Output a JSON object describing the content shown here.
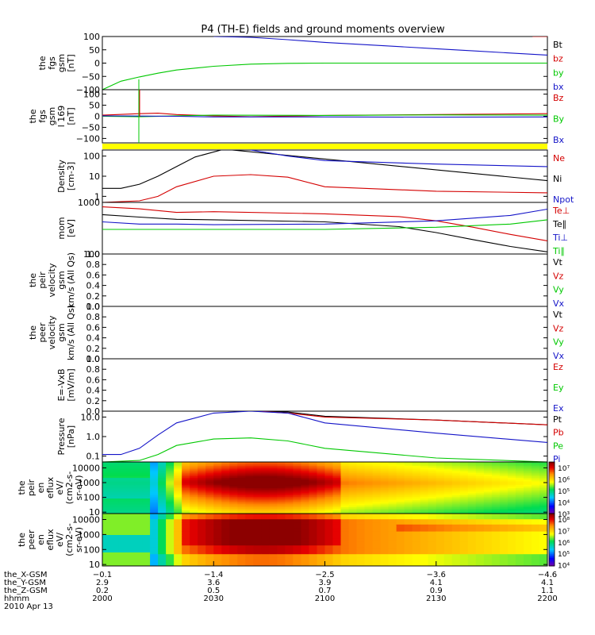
{
  "title": "P4 (TH-E) fields and ground moments overview",
  "colors": {
    "black": "#000000",
    "red": "#d40000",
    "green": "#00c800",
    "blue": "#1414c8",
    "yellow": "#ffff00"
  },
  "chart_data": [
    {
      "type": "line",
      "id": "fgs",
      "ylabel": [
        "the",
        "fgs",
        "gsm",
        "[nT]"
      ],
      "ylim": [
        -100,
        100
      ],
      "yticks": [
        "100",
        "50",
        "0",
        "−50",
        "−100"
      ],
      "ytick_values": [
        100,
        50,
        0,
        -50,
        -100
      ],
      "legend": [
        {
          "label": "Bt",
          "color": "black"
        },
        {
          "label": "bz",
          "color": "red"
        },
        {
          "label": "by",
          "color": "green"
        },
        {
          "label": "bx",
          "color": "blue"
        }
      ],
      "series": [
        {
          "name": "bx",
          "color": "blue",
          "x": [
            2030,
            2040,
            2050,
            2100,
            2110,
            2120,
            2130,
            2140,
            2150,
            2200
          ],
          "y": [
            100,
            97,
            88,
            78,
            70,
            62,
            54,
            46,
            38,
            30
          ]
        },
        {
          "name": "by",
          "color": "green",
          "x": [
            2000,
            2005,
            2010,
            2015,
            2020,
            2030,
            2040,
            2050,
            2100,
            2130,
            2200
          ],
          "y": [
            -100,
            -68,
            -52,
            -38,
            -26,
            -12,
            -4,
            -1,
            0,
            0,
            0
          ]
        },
        {
          "name": "bz",
          "color": "red",
          "x": [
            2156,
            2200
          ],
          "y": [
            100,
            100
          ]
        }
      ]
    },
    {
      "type": "line",
      "id": "fgs-ssl",
      "ylabel": [
        "the",
        "fgs",
        "gsm",
        "l 169",
        "[nT]"
      ],
      "ylim": [
        -120,
        120
      ],
      "yticks": [
        "100",
        "50",
        "0",
        "−50",
        "−100"
      ],
      "ytick_values": [
        100,
        50,
        0,
        -50,
        -100
      ],
      "legend": [
        {
          "label": "Bz",
          "color": "red"
        },
        {
          "label": "By",
          "color": "green"
        },
        {
          "label": "Bx",
          "color": "blue"
        }
      ],
      "series": [
        {
          "name": "Bz",
          "color": "red",
          "x": [
            2000,
            2010,
            2015,
            2020,
            2030,
            2040,
            2100,
            2130,
            2200
          ],
          "y": [
            5,
            12,
            14,
            8,
            2,
            -2,
            4,
            8,
            12
          ]
        },
        {
          "name": "By",
          "color": "green",
          "x": [
            2000,
            2010,
            2020,
            2030,
            2100,
            2130,
            2200
          ],
          "y": [
            0,
            -2,
            2,
            5,
            4,
            6,
            5
          ]
        },
        {
          "name": "Bx",
          "color": "blue",
          "x": [
            2000,
            2010,
            2020,
            2030,
            2100,
            2130,
            2200
          ],
          "y": [
            2,
            1,
            0,
            -3,
            -3,
            -4,
            -3
          ]
        }
      ]
    },
    {
      "type": "line",
      "id": "density",
      "ylabel": [
        "Density",
        "[cm-3]"
      ],
      "yscale": "log",
      "ylim": [
        0.5,
        200
      ],
      "yticks": [
        "100",
        "10",
        "1"
      ],
      "ytick_values": [
        100,
        10,
        1
      ],
      "legend": [
        {
          "label": "Ne",
          "color": "red"
        },
        {
          "label": "Ni",
          "color": "black"
        },
        {
          "label": "Npot",
          "color": "blue"
        }
      ],
      "series": [
        {
          "name": "Ni",
          "color": "black",
          "x": [
            2000,
            2005,
            2010,
            2015,
            2020,
            2025,
            2032,
            2035,
            2200
          ],
          "y": [
            2.5,
            2.5,
            4,
            10,
            30,
            90,
            200,
            200,
            6
          ]
        },
        {
          "name": "Npot",
          "color": "blue",
          "x": [
            2040,
            2050,
            2100,
            2130,
            2200
          ],
          "y": [
            200,
            100,
            60,
            40,
            30
          ]
        },
        {
          "name": "Ne",
          "color": "red",
          "x": [
            2000,
            2010,
            2015,
            2020,
            2030,
            2040,
            2050,
            2100,
            2130,
            2200
          ],
          "y": [
            0.5,
            0.6,
            1,
            3,
            10,
            12,
            9,
            3,
            1.8,
            1.5
          ]
        }
      ]
    },
    {
      "type": "line",
      "id": "temp",
      "ylabel": [
        "mom",
        "[eV]"
      ],
      "yscale": "log",
      "ylim": [
        100,
        1000
      ],
      "yticks": [
        "1000",
        "100"
      ],
      "ytick_values": [
        1000,
        100
      ],
      "legend": [
        {
          "label": "Te⊥",
          "color": "red"
        },
        {
          "label": "Te∥",
          "color": "black"
        },
        {
          "label": "Ti⊥",
          "color": "blue"
        },
        {
          "label": "Ti∥",
          "color": "green"
        }
      ],
      "series": [
        {
          "name": "Te⊥",
          "color": "red",
          "x": [
            2000,
            2010,
            2020,
            2030,
            2100,
            2120,
            2130,
            2140,
            2150,
            2200
          ],
          "y": [
            820,
            750,
            640,
            660,
            600,
            530,
            440,
            330,
            240,
            180
          ]
        },
        {
          "name": "Te∥",
          "color": "black",
          "x": [
            2000,
            2010,
            2020,
            2030,
            2100,
            2120,
            2130,
            2140,
            2150,
            2200
          ],
          "y": [
            580,
            520,
            470,
            460,
            420,
            340,
            260,
            190,
            140,
            110
          ]
        },
        {
          "name": "Ti⊥",
          "color": "blue",
          "x": [
            2000,
            2010,
            2020,
            2030,
            2100,
            2130,
            2150,
            2200
          ],
          "y": [
            420,
            380,
            380,
            370,
            380,
            440,
            560,
            740
          ]
        },
        {
          "name": "Ti∥",
          "color": "green",
          "x": [
            2000,
            2030,
            2100,
            2130,
            2150,
            2200
          ],
          "y": [
            300,
            300,
            300,
            330,
            380,
            460
          ]
        }
      ]
    },
    {
      "type": "line",
      "id": "peir-vel",
      "ylabel": [
        "the",
        "peir",
        "velocity",
        "gsm",
        "km/s (All Qs)"
      ],
      "ylim": [
        0,
        1
      ],
      "yticks": [
        "1.0",
        "0.8",
        "0.6",
        "0.4",
        "0.2",
        "0.0"
      ],
      "ytick_values": [
        1,
        0.8,
        0.6,
        0.4,
        0.2,
        0
      ],
      "legend": [
        {
          "label": "Vt",
          "color": "black"
        },
        {
          "label": "Vz",
          "color": "red"
        },
        {
          "label": "Vy",
          "color": "green"
        },
        {
          "label": "Vx",
          "color": "blue"
        }
      ],
      "series": []
    },
    {
      "type": "line",
      "id": "peer-vel",
      "ylabel": [
        "the",
        "peer",
        "velocity",
        "gsm",
        "km/s (All Qs)"
      ],
      "ylim": [
        0,
        1
      ],
      "yticks": [
        "1.0",
        "0.8",
        "0.6",
        "0.4",
        "0.2",
        "0.0"
      ],
      "ytick_values": [
        1,
        0.8,
        0.6,
        0.4,
        0.2,
        0
      ],
      "legend": [
        {
          "label": "Vt",
          "color": "black"
        },
        {
          "label": "Vz",
          "color": "red"
        },
        {
          "label": "Vy",
          "color": "green"
        },
        {
          "label": "Vx",
          "color": "blue"
        }
      ],
      "series": []
    },
    {
      "type": "line",
      "id": "efield",
      "ylabel": [
        "E=-VxB",
        "[mV/m]"
      ],
      "ylim": [
        0,
        1
      ],
      "yticks": [
        "1.0",
        "0.8",
        "0.6",
        "0.4",
        "0.2",
        "0.0"
      ],
      "ytick_values": [
        1,
        0.8,
        0.6,
        0.4,
        0.2,
        0
      ],
      "legend": [
        {
          "label": "Ez",
          "color": "red"
        },
        {
          "label": "Ey",
          "color": "green"
        },
        {
          "label": "Ex",
          "color": "blue"
        }
      ],
      "series": []
    },
    {
      "type": "line",
      "id": "pressure",
      "ylabel": [
        "Pressure",
        "[nPa]"
      ],
      "yscale": "log",
      "ylim": [
        0.05,
        20
      ],
      "yticks": [
        "10.0",
        "1.0",
        "0.1"
      ],
      "ytick_values": [
        10,
        1,
        0.1
      ],
      "legend": [
        {
          "label": "Pt",
          "color": "black"
        },
        {
          "label": "Pb",
          "color": "red"
        },
        {
          "label": "Pe",
          "color": "green"
        },
        {
          "label": "Pi",
          "color": "blue"
        }
      ],
      "series": [
        {
          "name": "Pt",
          "color": "black",
          "x": [
            2040,
            2050,
            2100,
            2130,
            2200
          ],
          "y": [
            20,
            18,
            11,
            7,
            4
          ]
        },
        {
          "name": "Pb",
          "color": "red",
          "x": [
            2042,
            2050,
            2100,
            2130,
            2200
          ],
          "y": [
            20,
            16,
            10,
            7,
            4
          ]
        },
        {
          "name": "Pi",
          "color": "blue",
          "x": [
            2000,
            2005,
            2010,
            2015,
            2020,
            2030,
            2040,
            2050,
            2100,
            2130,
            2200
          ],
          "y": [
            0.12,
            0.12,
            0.25,
            1.2,
            5,
            16,
            22,
            16,
            5,
            1.5,
            0.5
          ]
        },
        {
          "name": "Pe",
          "color": "green",
          "x": [
            2000,
            2010,
            2015,
            2020,
            2030,
            2040,
            2050,
            2100,
            2130,
            2200
          ],
          "y": [
            0.05,
            0.06,
            0.12,
            0.35,
            0.75,
            0.85,
            0.6,
            0.25,
            0.08,
            0.04
          ]
        }
      ]
    },
    {
      "type": "heatmap",
      "id": "peir-eflux",
      "ylabel": [
        "the",
        "peir",
        "en",
        "eflux",
        "eV/",
        "(cm2-s-",
        "sr-eV)"
      ],
      "yscale": "log",
      "ylim": [
        8,
        25000
      ],
      "yticks": [
        "10000",
        "1000",
        "100",
        "10"
      ],
      "ytick_values": [
        10000,
        1000,
        100,
        10
      ],
      "colorbar_ticks": [
        "10⁷",
        "10⁶",
        "10⁵",
        "10⁴",
        "10³"
      ],
      "colorbar_range": [
        3,
        7.5
      ]
    },
    {
      "type": "heatmap",
      "id": "peer-eflux",
      "ylabel": [
        "the",
        "peer",
        "en",
        "eflux",
        "eV/",
        "(cm2-s-",
        "sr-eV)"
      ],
      "yscale": "log",
      "ylim": [
        8,
        25000
      ],
      "yticks": [
        "10000",
        "1000",
        "100",
        "10"
      ],
      "ytick_values": [
        10000,
        1000,
        100,
        10
      ],
      "colorbar_ticks": [
        "10⁸",
        "10⁷",
        "10⁶",
        "10⁵",
        "10⁴"
      ],
      "colorbar_range": [
        3.7,
        8.3
      ]
    }
  ],
  "xaxis": {
    "range": [
      2000,
      2200
    ],
    "ticks": [
      2000,
      2030,
      2100,
      2130,
      2200
    ],
    "rows": [
      {
        "name": "the_X-GSM",
        "values": [
          "−0.1",
          "−1.4",
          "−2.5",
          "−3.6",
          "−4.6"
        ]
      },
      {
        "name": "the_Y-GSM",
        "values": [
          "2.9",
          "3.6",
          "3.9",
          "4.1",
          "4.1"
        ]
      },
      {
        "name": "the_Z-GSM",
        "values": [
          "0.2",
          "0.5",
          "0.7",
          "0.9",
          "1.1"
        ]
      },
      {
        "name": "hhmm",
        "values": [
          "2000",
          "2030",
          "2100",
          "2130",
          "2200"
        ]
      }
    ],
    "date": "2010 Apr 13"
  }
}
